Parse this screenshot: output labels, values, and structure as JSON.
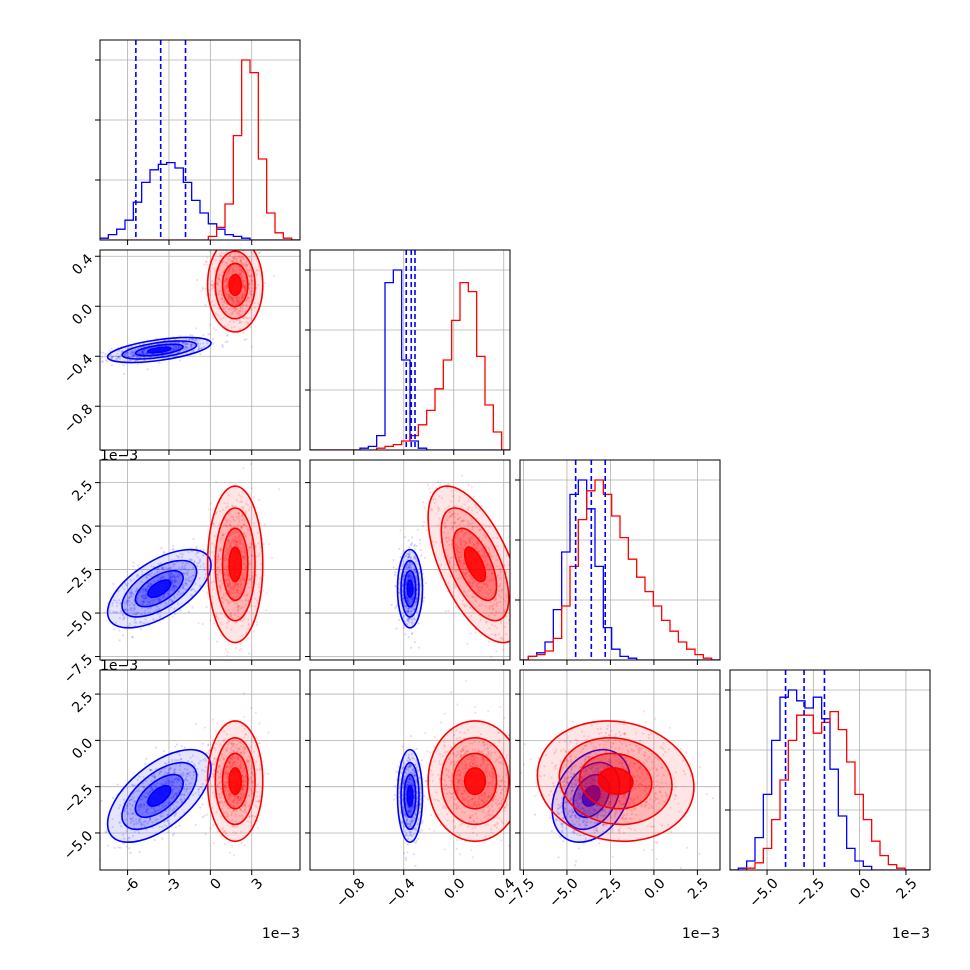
{
  "colors": {
    "blue": "#0000ff",
    "red": "#ff0000",
    "grid": "#b0b0b0"
  },
  "chart_data": {
    "type": "corner",
    "grid": true,
    "series": [
      {
        "color": "#0000ff",
        "means": [
          -3.7,
          -0.35,
          -3.6,
          -3.0
        ],
        "sds": [
          1.5,
          0.04,
          0.9,
          1.0
        ],
        "corr": [
          [
            0,
            1,
            0.55
          ],
          [
            0,
            2,
            0.6
          ],
          [
            0,
            3,
            0.6
          ],
          [
            2,
            3,
            0.3
          ]
        ],
        "quantiles": [
          [
            -5.4,
            -3.6,
            -1.8
          ],
          [
            -0.38,
            -0.34,
            -0.31
          ],
          [
            -4.5,
            -3.6,
            -2.8
          ],
          [
            -4.0,
            -3.0,
            -1.9
          ]
        ]
      },
      {
        "color": "#ff0000",
        "means": [
          1.8,
          0.17,
          -2.2,
          -2.2
        ],
        "sds": [
          0.8,
          0.15,
          1.8,
          1.3
        ],
        "corr": [
          [
            1,
            2,
            -0.6
          ],
          [
            2,
            3,
            -0.1
          ]
        ],
        "quantiles": []
      }
    ],
    "histograms": [
      {
        "range": [
          -8,
          6.5
        ],
        "blue": [
          1,
          3,
          6,
          11,
          21,
          32,
          39,
          42,
          43,
          40,
          32,
          22,
          15,
          9,
          6,
          3,
          2,
          1,
          0,
          0,
          0,
          0,
          0,
          0
        ],
        "red": [
          0,
          0,
          0,
          0,
          0,
          0,
          0,
          0,
          0,
          0,
          0,
          0,
          0,
          2,
          7,
          20,
          58,
          100,
          93,
          45,
          15,
          4,
          1,
          0
        ]
      },
      {
        "range": [
          -1.15,
          0.45
        ],
        "blue": [
          0,
          0,
          0,
          0,
          0,
          0,
          1,
          2,
          8,
          93,
          100,
          50,
          5,
          1,
          0,
          0,
          0,
          0,
          0,
          0,
          0,
          0,
          0,
          0
        ],
        "red": [
          0,
          0,
          0,
          0,
          0,
          0,
          0,
          0,
          1,
          2,
          3,
          5,
          8,
          14,
          22,
          34,
          50,
          72,
          93,
          88,
          52,
          25,
          10,
          0
        ]
      },
      {
        "range": [
          -7.7,
          3.8
        ],
        "blue": [
          0,
          2,
          4,
          10,
          28,
          60,
          92,
          100,
          84,
          52,
          18,
          6,
          2,
          1,
          0,
          0,
          0,
          0,
          0,
          0,
          0,
          0,
          0,
          0
        ],
        "red": [
          0,
          2,
          3,
          5,
          12,
          30,
          52,
          78,
          94,
          100,
          92,
          80,
          68,
          56,
          46,
          38,
          30,
          22,
          16,
          10,
          6,
          3,
          1,
          0
        ]
      },
      {
        "range": [
          -7.0,
          3.8
        ],
        "blue": [
          0,
          1,
          5,
          18,
          42,
          72,
          96,
          100,
          94,
          90,
          96,
          84,
          56,
          30,
          12,
          5,
          2,
          0,
          0,
          0,
          0,
          0,
          0,
          0
        ],
        "red": [
          0,
          0,
          1,
          4,
          12,
          28,
          50,
          72,
          86,
          86,
          76,
          82,
          88,
          78,
          60,
          42,
          28,
          16,
          8,
          3,
          1,
          0,
          0,
          0
        ]
      }
    ],
    "axes": [
      {
        "lim": [
          -8,
          6.5
        ],
        "ticks": [
          "-6",
          "-3",
          "0",
          "3"
        ],
        "values": [
          -6,
          -3,
          0,
          3
        ],
        "offset": "1e−3"
      },
      {
        "lim": [
          -1.15,
          0.45
        ],
        "ticks": [
          "−0.8",
          "−0.4",
          "0.0",
          "0.4"
        ],
        "values": [
          -0.8,
          -0.4,
          0.0,
          0.4
        ],
        "offset": ""
      },
      {
        "lim": [
          -7.7,
          3.8
        ],
        "ticks": [
          "−7.5",
          "−5.0",
          "−2.5",
          "0.0",
          "2.5"
        ],
        "values": [
          -7.5,
          -5.0,
          -2.5,
          0.0,
          2.5
        ],
        "offset": "1e−3"
      },
      {
        "lim": [
          -7.0,
          3.8
        ],
        "ticks": [
          "−5.0",
          "−2.5",
          "0.0",
          "2.5"
        ],
        "values": [
          -5.0,
          -2.5,
          0.0,
          2.5
        ],
        "offset": "1e−3"
      }
    ],
    "y_axes": [
      null,
      {
        "lim": [
          -1.15,
          0.45
        ],
        "ticks": [
          "−0.8",
          "−0.4",
          "0.0",
          "0.4"
        ],
        "values": [
          -0.8,
          -0.4,
          0.0,
          0.4
        ],
        "offset": "1e−3"
      },
      {
        "lim": [
          -7.7,
          3.8
        ],
        "ticks": [
          "−7.5",
          "−5.0",
          "−2.5",
          "0.0",
          "2.5"
        ],
        "values": [
          -7.5,
          -5.0,
          -2.5,
          0.0,
          2.5
        ],
        "offset": "1e−3"
      },
      {
        "lim": [
          -7.0,
          3.8
        ],
        "ticks": [
          "−5.0",
          "−2.5",
          "0.0",
          "2.5"
        ],
        "values": [
          -5.0,
          -2.5,
          0.0,
          2.5
        ],
        "offset": ""
      }
    ]
  }
}
